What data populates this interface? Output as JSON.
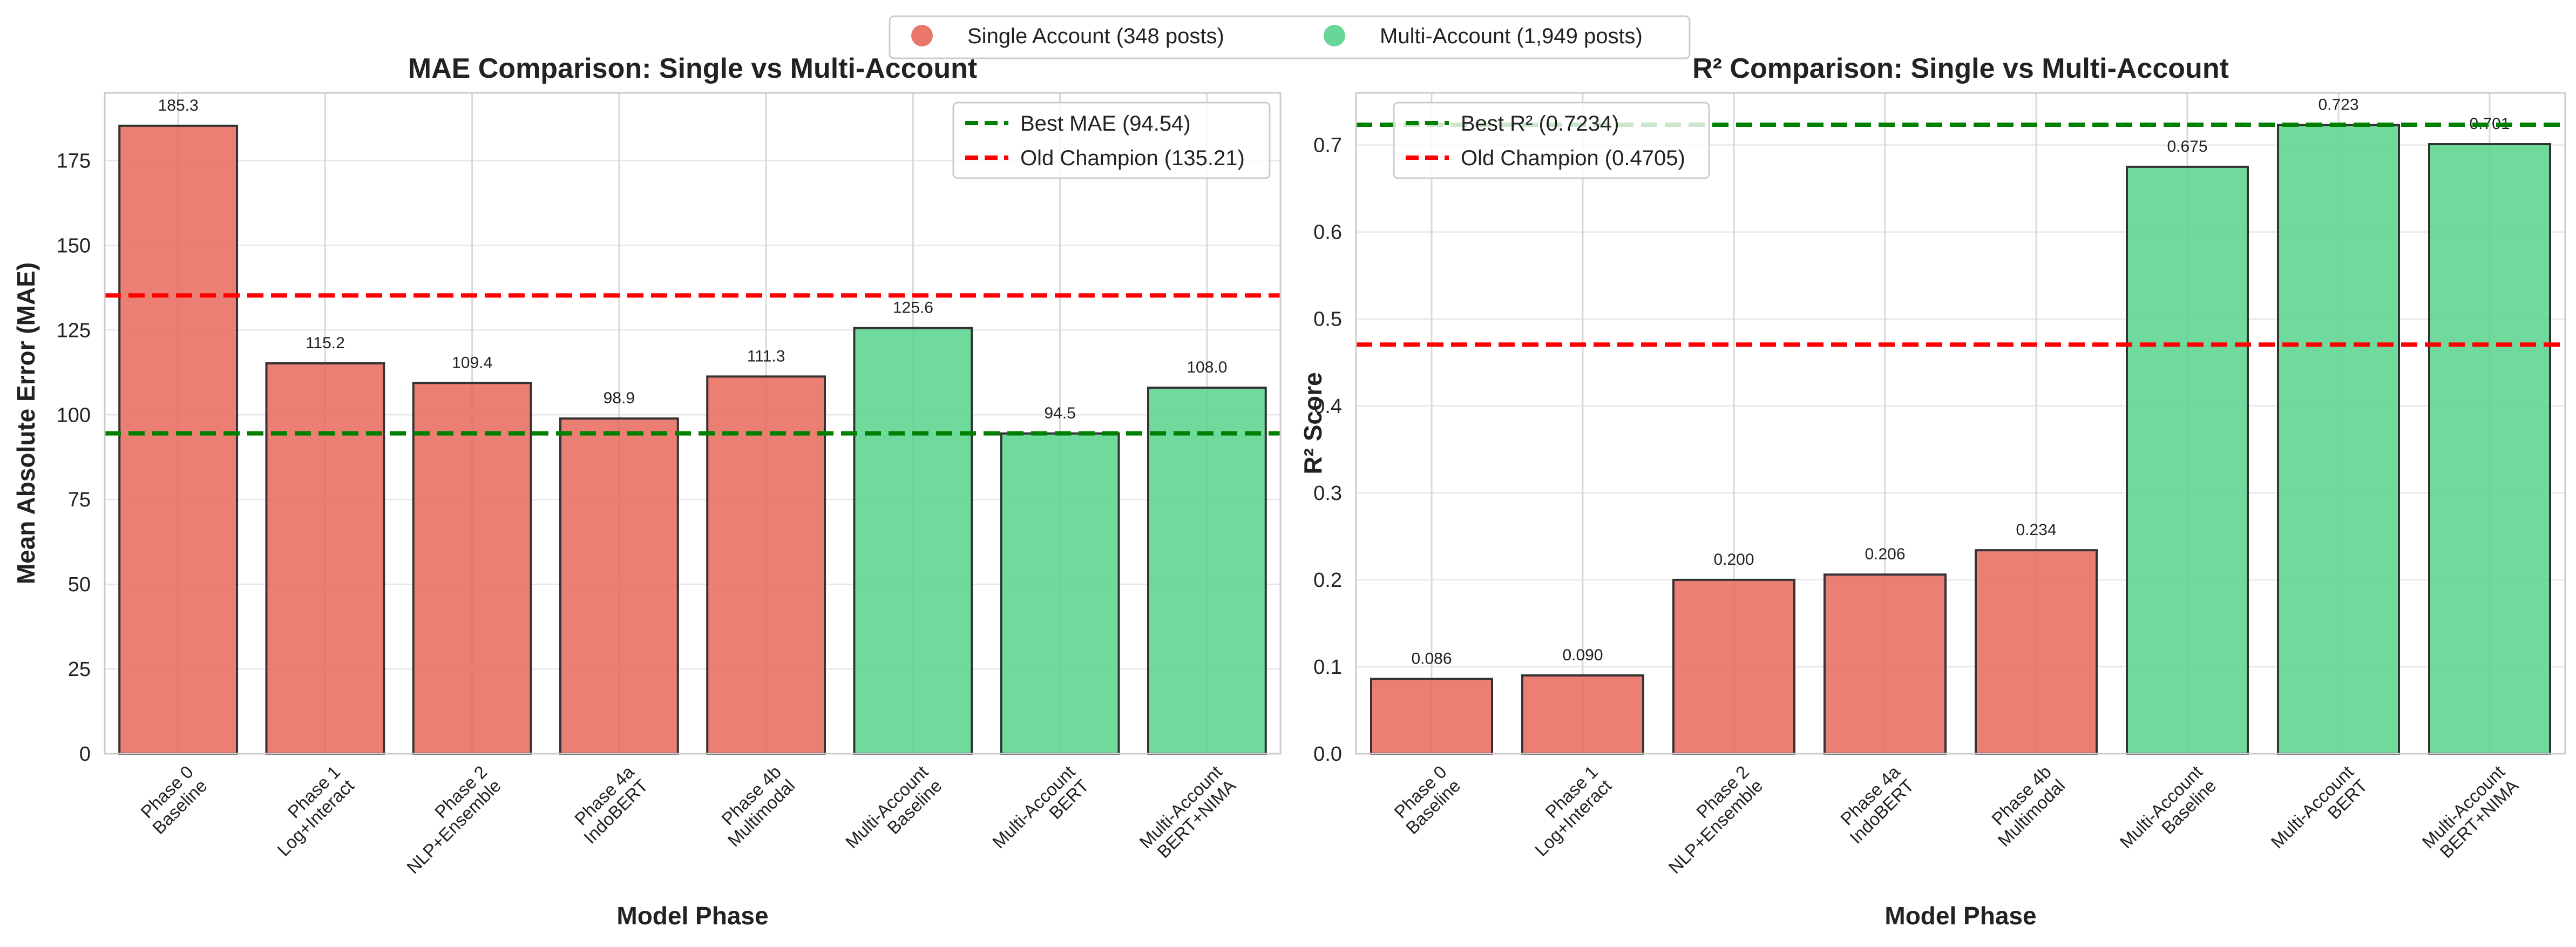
{
  "legend": {
    "placement": "top-center",
    "items": [
      {
        "label": "Single Account (348 posts)",
        "color": "#e8685a"
      },
      {
        "label": "Multi-Account (1,949 posts)",
        "color": "#57d38c"
      }
    ]
  },
  "chart_data": [
    {
      "type": "bar",
      "title": "MAE Comparison: Single vs Multi-Account",
      "xlabel": "Model Phase",
      "ylabel": "Mean Absolute Error (MAE)",
      "ylim": [
        0,
        195
      ],
      "yticks": [
        0,
        25,
        50,
        75,
        100,
        125,
        150,
        175
      ],
      "grid": true,
      "categories": [
        "Phase 0\nBaseline",
        "Phase 1\nLog+Interact",
        "Phase 2\nNLP+Ensemble",
        "Phase 4a\nIndoBERT",
        "Phase 4b\nMultimodal",
        "Multi-Account\nBaseline",
        "Multi-Account\nBERT",
        "Multi-Account\nBERT+NIMA"
      ],
      "values": [
        185.3,
        115.2,
        109.4,
        98.9,
        111.3,
        125.6,
        94.5,
        108.0
      ],
      "value_labels": [
        "185.3",
        "115.2",
        "109.4",
        "98.9",
        "111.3",
        "125.6",
        "94.5",
        "108.0"
      ],
      "groups": [
        "single",
        "single",
        "single",
        "single",
        "single",
        "multi",
        "multi",
        "multi"
      ],
      "reference_lines": [
        {
          "label": "Best MAE (94.54)",
          "value": 94.54,
          "color": "#008000"
        },
        {
          "label": "Old Champion (135.21)",
          "value": 135.21,
          "color": "#ff0000"
        }
      ],
      "legend_placement": "top-right"
    },
    {
      "type": "bar",
      "title": "R² Comparison: Single vs Multi-Account",
      "xlabel": "Model Phase",
      "ylabel": "R² Score",
      "ylim": [
        0,
        0.76
      ],
      "yticks": [
        0.0,
        0.1,
        0.2,
        0.3,
        0.4,
        0.5,
        0.6,
        0.7
      ],
      "ytick_labels": [
        "0.0",
        "0.1",
        "0.2",
        "0.3",
        "0.4",
        "0.5",
        "0.6",
        "0.7"
      ],
      "grid": true,
      "categories": [
        "Phase 0\nBaseline",
        "Phase 1\nLog+Interact",
        "Phase 2\nNLP+Ensemble",
        "Phase 4a\nIndoBERT",
        "Phase 4b\nMultimodal",
        "Multi-Account\nBaseline",
        "Multi-Account\nBERT",
        "Multi-Account\nBERT+NIMA"
      ],
      "values": [
        0.086,
        0.09,
        0.2,
        0.206,
        0.234,
        0.675,
        0.723,
        0.701
      ],
      "value_labels": [
        "0.086",
        "0.090",
        "0.200",
        "0.206",
        "0.234",
        "0.675",
        "0.723",
        "0.701"
      ],
      "groups": [
        "single",
        "single",
        "single",
        "single",
        "single",
        "multi",
        "multi",
        "multi"
      ],
      "reference_lines": [
        {
          "label": "Best R² (0.7234)",
          "value": 0.7234,
          "color": "#008000"
        },
        {
          "label": "Old Champion (0.4705)",
          "value": 0.4705,
          "color": "#ff0000"
        }
      ],
      "legend_placement": "top-left"
    }
  ]
}
